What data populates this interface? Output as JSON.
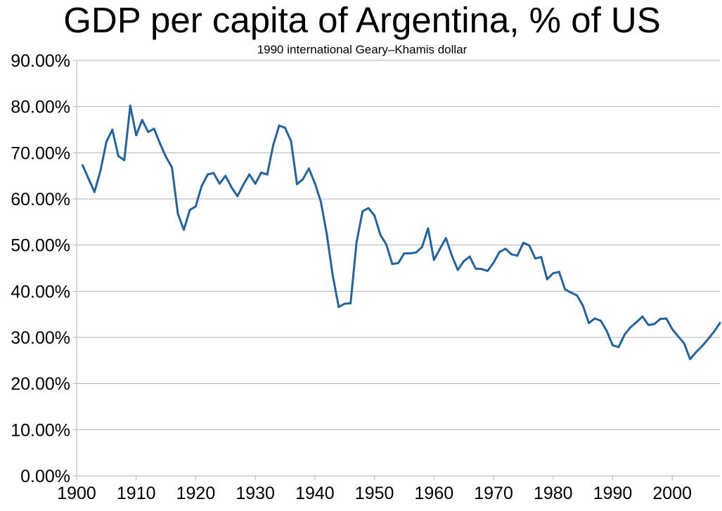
{
  "chart_data": {
    "type": "line",
    "title": "GDP per capita of Argentina, % of US",
    "subtitle": "1990 international Geary–Khamis dollar",
    "xlabel": "",
    "ylabel": "",
    "xlim": [
      1900,
      2008
    ],
    "ylim": [
      0,
      90
    ],
    "x_ticks": [
      1900,
      1910,
      1920,
      1930,
      1940,
      1950,
      1960,
      1970,
      1980,
      1990,
      2000
    ],
    "x_tick_labels": [
      "1900",
      "1910",
      "1920",
      "1930",
      "1940",
      "1950",
      "1960",
      "1970",
      "1980",
      "1990",
      "2000"
    ],
    "y_ticks": [
      0,
      10,
      20,
      30,
      40,
      50,
      60,
      70,
      80,
      90
    ],
    "y_tick_labels": [
      "0.00%",
      "10.00%",
      "20.00%",
      "30.00%",
      "40.00%",
      "50.00%",
      "60.00%",
      "70.00%",
      "80.00%",
      "90.00%"
    ],
    "grid": "horizontal",
    "legend": "none",
    "line_color": "#2364a0",
    "grid_color": "#b3b3b3",
    "series": [
      {
        "x": [
          1901,
          1902,
          1903,
          1904,
          1905,
          1906,
          1907,
          1908,
          1909,
          1910,
          1911,
          1912,
          1913,
          1914,
          1915,
          1916,
          1917,
          1918,
          1919,
          1920,
          1921,
          1922,
          1923,
          1924,
          1925,
          1926,
          1927,
          1928,
          1929,
          1930,
          1931,
          1932,
          1933,
          1934,
          1935,
          1936,
          1937,
          1938,
          1939,
          1940,
          1941,
          1942,
          1943,
          1944,
          1945,
          1946,
          1947,
          1948,
          1949,
          1950,
          1951,
          1952,
          1953,
          1954,
          1955,
          1956,
          1957,
          1958,
          1959,
          1960,
          1961,
          1962,
          1963,
          1964,
          1965,
          1966,
          1967,
          1968,
          1969,
          1970,
          1971,
          1972,
          1973,
          1974,
          1975,
          1976,
          1977,
          1978,
          1979,
          1980,
          1981,
          1982,
          1983,
          1984,
          1985,
          1986,
          1987,
          1988,
          1989,
          1990,
          1991,
          1992,
          1993,
          1994,
          1995,
          1996,
          1997,
          1998,
          1999,
          2000,
          2001,
          2002,
          2003,
          2004,
          2005,
          2006,
          2007,
          2008
        ],
        "values": [
          67.3,
          64.4,
          61.5,
          66.1,
          72.4,
          75.0,
          69.3,
          68.4,
          80.2,
          73.8,
          77.1,
          74.5,
          75.2,
          72.0,
          69.1,
          66.8,
          56.8,
          53.3,
          57.6,
          58.4,
          62.8,
          65.3,
          65.6,
          63.3,
          65.0,
          62.5,
          60.6,
          63.1,
          65.3,
          63.3,
          65.7,
          65.3,
          71.6,
          75.9,
          75.4,
          72.5,
          63.2,
          64.3,
          66.6,
          63.4,
          59.4,
          52.4,
          43.4,
          36.6,
          37.3,
          37.4,
          50.6,
          57.3,
          58.0,
          56.4,
          52.2,
          50.1,
          45.9,
          46.1,
          48.2,
          48.2,
          48.4,
          49.6,
          53.6,
          46.8,
          49.2,
          51.5,
          47.7,
          44.6,
          46.5,
          47.5,
          44.9,
          44.8,
          44.4,
          46.2,
          48.5,
          49.2,
          48.0,
          47.7,
          50.5,
          49.9,
          47.1,
          47.4,
          42.6,
          43.9,
          44.2,
          40.4,
          39.7,
          39.1,
          36.9,
          33.1,
          34.1,
          33.6,
          31.4,
          28.3,
          27.9,
          30.6,
          32.2,
          33.3,
          34.5,
          32.7,
          32.9,
          34.0,
          34.1,
          31.8,
          30.2,
          28.7,
          25.3,
          26.8,
          28.1,
          29.6,
          31.2,
          33.1
        ]
      }
    ]
  }
}
